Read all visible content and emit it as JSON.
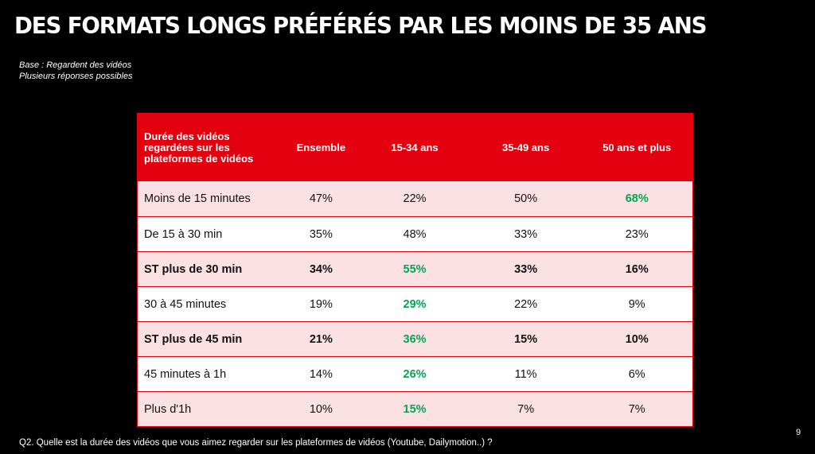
{
  "title": "DES FORMATS LONGS PRÉFÉRÉS PAR LES MOINS DE 35 ANS",
  "base_lines": [
    "Base : Regardent des vidéos",
    "Plusieurs réponses possibles"
  ],
  "footnote": "Q2. Quelle est la durée des vidéos que vous aimez regarder sur les plateformes de vidéos (Youtube, Dailymotion..)  ?",
  "page_number": "9",
  "colors": {
    "header_bg": "#e3000f",
    "row_shade": "#fbe1e3",
    "highlight_green": "#00a650",
    "background": "#000000"
  },
  "chart_data": {
    "type": "table",
    "columns": [
      "Durée des vidéos\nregardées sur les\nplateformes de vidéos",
      "Ensemble",
      "15-34 ans",
      "35-49 ans",
      "50 ans et plus"
    ],
    "rows": [
      {
        "label": "Moins de 15 minutes",
        "values": [
          "47%",
          "22%",
          "50%",
          "68%"
        ],
        "bold": false,
        "highlight": [
          false,
          false,
          false,
          true
        ]
      },
      {
        "label": "De 15 à 30 min",
        "values": [
          "35%",
          "48%",
          "33%",
          "23%"
        ],
        "bold": false,
        "highlight": [
          false,
          false,
          false,
          false
        ]
      },
      {
        "label": "ST plus de 30 min",
        "values": [
          "34%",
          "55%",
          "33%",
          "16%"
        ],
        "bold": true,
        "highlight": [
          false,
          true,
          false,
          false
        ]
      },
      {
        "label": "30 à 45 minutes",
        "values": [
          "19%",
          "29%",
          "22%",
          "9%"
        ],
        "bold": false,
        "highlight": [
          false,
          true,
          false,
          false
        ]
      },
      {
        "label": "ST plus de 45 min",
        "values": [
          "21%",
          "36%",
          "15%",
          "10%"
        ],
        "bold": true,
        "highlight": [
          false,
          true,
          false,
          false
        ]
      },
      {
        "label": "45 minutes à 1h",
        "values": [
          "14%",
          "26%",
          "11%",
          "6%"
        ],
        "bold": false,
        "highlight": [
          false,
          true,
          false,
          false
        ]
      },
      {
        "label": "Plus d'1h",
        "values": [
          "10%",
          "15%",
          "7%",
          "7%"
        ],
        "bold": false,
        "highlight": [
          false,
          true,
          false,
          false
        ]
      }
    ]
  }
}
